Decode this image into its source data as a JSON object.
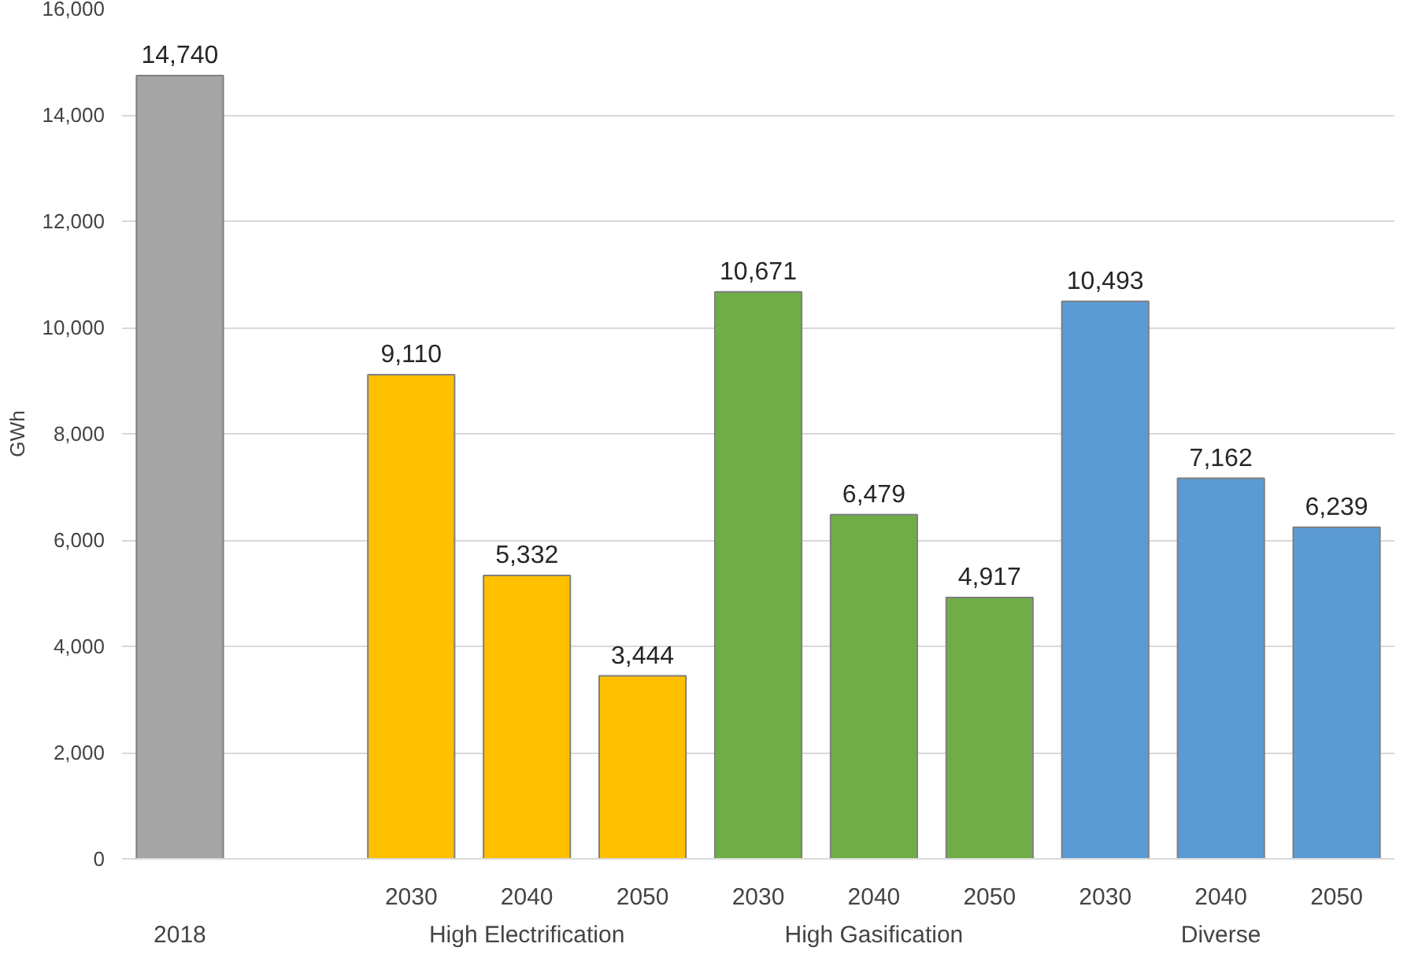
{
  "chart_data": {
    "type": "bar",
    "ylabel": "GWh",
    "categories": [
      null,
      null,
      "2030",
      "2040",
      "2050",
      "2030",
      "2040",
      "2050",
      "2030",
      "2040",
      "2050"
    ],
    "values": [
      14740,
      null,
      9110,
      5332,
      3444,
      10671,
      6479,
      4917,
      10493,
      7162,
      6239
    ],
    "value_labels": [
      "14,740",
      null,
      "9,110",
      "5,332",
      "3,444",
      "10,671",
      "6,479",
      "4,917",
      "10,493",
      "7,162",
      "6,239"
    ],
    "colors": [
      "#a5a5a5",
      null,
      "#ffc000",
      "#ffc000",
      "#ffc000",
      "#70ad47",
      "#70ad47",
      "#70ad47",
      "#5b9bd5",
      "#5b9bd5",
      "#5b9bd5"
    ],
    "annotations": [
      "2018",
      "High Electrification",
      "High Gasification",
      "Diverse"
    ],
    "grid": "y",
    "ylim": [
      0,
      16000
    ],
    "yticks": [
      {
        "value": 0,
        "label": "0"
      },
      {
        "value": 2000,
        "label": "2,000"
      },
      {
        "value": 4000,
        "label": "4,000"
      },
      {
        "value": 6000,
        "label": "6,000"
      },
      {
        "value": 8000,
        "label": "8,000"
      },
      {
        "value": 10000,
        "label": "10,000"
      },
      {
        "value": 12000,
        "label": "12,000"
      },
      {
        "value": 14000,
        "label": "14,000"
      },
      {
        "value": 16000,
        "label": "16,000"
      }
    ]
  }
}
